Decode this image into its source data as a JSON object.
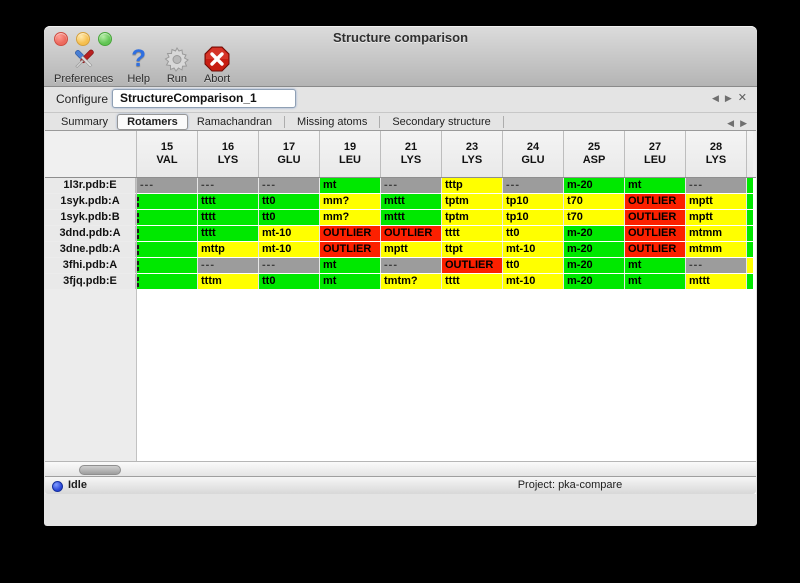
{
  "window": {
    "title": "Structure comparison"
  },
  "toolbar": {
    "items": [
      {
        "label": "Preferences",
        "icon": "tools-icon"
      },
      {
        "label": "Help",
        "icon": "help-icon",
        "glyph": "?"
      },
      {
        "label": "Run",
        "icon": "gear-icon"
      },
      {
        "label": "Abort",
        "icon": "abort-icon"
      }
    ]
  },
  "configure": {
    "label": "Configure",
    "value": "StructureComparison_1"
  },
  "pager": {
    "prev": "◀",
    "next": "▶",
    "close": "✕"
  },
  "tabs": [
    {
      "label": "Summary",
      "selected": false
    },
    {
      "label": "Rotamers",
      "selected": true
    },
    {
      "label": "Ramachandran",
      "selected": false
    },
    {
      "label": "Missing atoms",
      "selected": false
    },
    {
      "label": "Secondary structure",
      "selected": false
    }
  ],
  "colors": {
    "green": "#00e800",
    "yellow": "#ffff00",
    "red": "#fc2000",
    "gray": "#9c9c9c"
  },
  "table": {
    "columns": [
      {
        "num": "15",
        "res": "VAL"
      },
      {
        "num": "16",
        "res": "LYS"
      },
      {
        "num": "17",
        "res": "GLU"
      },
      {
        "num": "19",
        "res": "LEU"
      },
      {
        "num": "21",
        "res": "LYS"
      },
      {
        "num": "23",
        "res": "LYS"
      },
      {
        "num": "24",
        "res": "GLU"
      },
      {
        "num": "25",
        "res": "ASP"
      },
      {
        "num": "27",
        "res": "LEU"
      },
      {
        "num": "28",
        "res": "LYS"
      }
    ],
    "rows": [
      {
        "label": "1l3r.pdb:E",
        "overflow_color": "green",
        "cells": [
          {
            "t": "---",
            "c": "gray"
          },
          {
            "t": "---",
            "c": "gray"
          },
          {
            "t": "---",
            "c": "gray"
          },
          {
            "t": "mt",
            "c": "green"
          },
          {
            "t": "---",
            "c": "gray"
          },
          {
            "t": "tttp",
            "c": "yellow"
          },
          {
            "t": "---",
            "c": "gray"
          },
          {
            "t": "m-20",
            "c": "green"
          },
          {
            "t": "mt",
            "c": "green"
          },
          {
            "t": "---",
            "c": "gray"
          }
        ]
      },
      {
        "label": "1syk.pdb:A",
        "overflow_color": "green",
        "cells": [
          {
            "t": "",
            "c": "green",
            "clip": true
          },
          {
            "t": "tttt",
            "c": "green"
          },
          {
            "t": "tt0",
            "c": "green"
          },
          {
            "t": "mm?",
            "c": "yellow"
          },
          {
            "t": "mttt",
            "c": "green"
          },
          {
            "t": "tptm",
            "c": "yellow"
          },
          {
            "t": "tp10",
            "c": "yellow"
          },
          {
            "t": "t70",
            "c": "yellow"
          },
          {
            "t": "OUTLIER",
            "c": "red"
          },
          {
            "t": "mptt",
            "c": "yellow"
          }
        ]
      },
      {
        "label": "1syk.pdb:B",
        "overflow_color": "green",
        "cells": [
          {
            "t": "",
            "c": "green",
            "clip": true
          },
          {
            "t": "tttt",
            "c": "green"
          },
          {
            "t": "tt0",
            "c": "green"
          },
          {
            "t": "mm?",
            "c": "yellow"
          },
          {
            "t": "mttt",
            "c": "green"
          },
          {
            "t": "tptm",
            "c": "yellow"
          },
          {
            "t": "tp10",
            "c": "yellow"
          },
          {
            "t": "t70",
            "c": "yellow"
          },
          {
            "t": "OUTLIER",
            "c": "red"
          },
          {
            "t": "mptt",
            "c": "yellow"
          }
        ]
      },
      {
        "label": "3dnd.pdb:A",
        "overflow_color": "green",
        "cells": [
          {
            "t": "",
            "c": "green",
            "clip": true
          },
          {
            "t": "tttt",
            "c": "green"
          },
          {
            "t": "mt-10",
            "c": "yellow"
          },
          {
            "t": "OUTLIER",
            "c": "red"
          },
          {
            "t": "OUTLIER",
            "c": "red"
          },
          {
            "t": "tttt",
            "c": "yellow"
          },
          {
            "t": "tt0",
            "c": "yellow"
          },
          {
            "t": "m-20",
            "c": "green"
          },
          {
            "t": "OUTLIER",
            "c": "red"
          },
          {
            "t": "mtmm",
            "c": "yellow"
          }
        ]
      },
      {
        "label": "3dne.pdb:A",
        "overflow_color": "green",
        "cells": [
          {
            "t": "",
            "c": "green",
            "clip": true
          },
          {
            "t": "mttp",
            "c": "yellow"
          },
          {
            "t": "mt-10",
            "c": "yellow"
          },
          {
            "t": "OUTLIER",
            "c": "red"
          },
          {
            "t": "mptt",
            "c": "yellow"
          },
          {
            "t": "ttpt",
            "c": "yellow"
          },
          {
            "t": "mt-10",
            "c": "yellow"
          },
          {
            "t": "m-20",
            "c": "green"
          },
          {
            "t": "OUTLIER",
            "c": "red"
          },
          {
            "t": "mtmm",
            "c": "yellow"
          }
        ]
      },
      {
        "label": "3fhi.pdb:A",
        "overflow_color": "yellow",
        "cells": [
          {
            "t": "",
            "c": "green",
            "clip": true
          },
          {
            "t": "---",
            "c": "gray"
          },
          {
            "t": "---",
            "c": "gray"
          },
          {
            "t": "mt",
            "c": "green"
          },
          {
            "t": "---",
            "c": "gray"
          },
          {
            "t": "OUTLIER",
            "c": "red"
          },
          {
            "t": "tt0",
            "c": "yellow"
          },
          {
            "t": "m-20",
            "c": "green"
          },
          {
            "t": "mt",
            "c": "green"
          },
          {
            "t": "---",
            "c": "gray"
          }
        ]
      },
      {
        "label": "3fjq.pdb:E",
        "overflow_color": "green",
        "cells": [
          {
            "t": "",
            "c": "green",
            "clip": true
          },
          {
            "t": "tttm",
            "c": "yellow"
          },
          {
            "t": "tt0",
            "c": "green"
          },
          {
            "t": "mt",
            "c": "green"
          },
          {
            "t": "tmtm?",
            "c": "yellow"
          },
          {
            "t": "tttt",
            "c": "yellow"
          },
          {
            "t": "mt-10",
            "c": "yellow"
          },
          {
            "t": "m-20",
            "c": "green"
          },
          {
            "t": "mt",
            "c": "green"
          },
          {
            "t": "mttt",
            "c": "yellow"
          }
        ]
      }
    ]
  },
  "statusbar": {
    "status": "Idle",
    "project": "Project: pka-compare",
    "led_color": "#2a46d8"
  }
}
